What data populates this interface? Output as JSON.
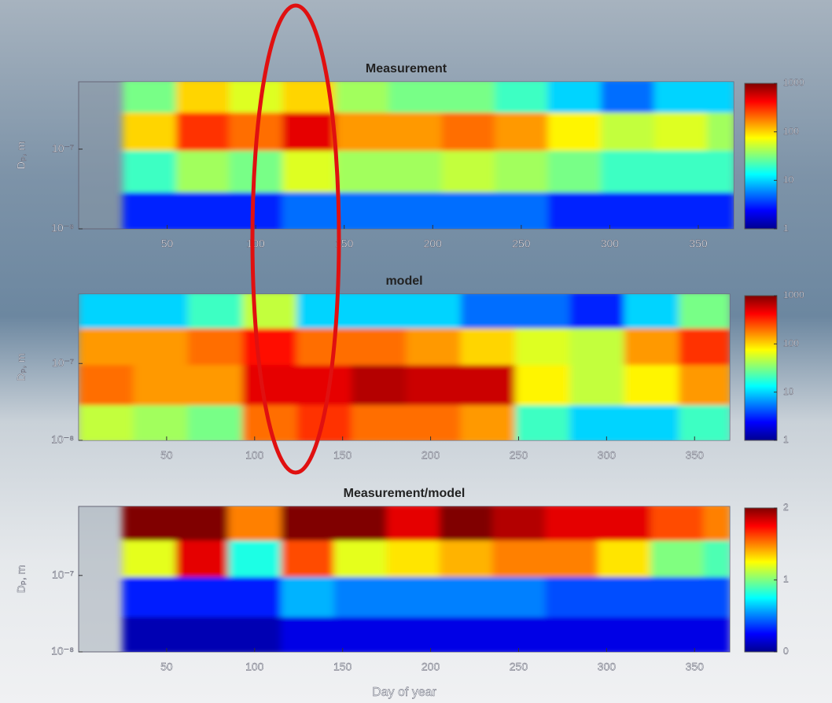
{
  "chart_data": [
    {
      "type": "heatmap",
      "title": "Measurement",
      "ylabel": "Dₚ, m",
      "x_edges": [
        25,
        55,
        85,
        115,
        145,
        175,
        205,
        235,
        265,
        295,
        325,
        355,
        370
      ],
      "y_edges": [
        1e-08,
        3e-08,
        1e-07,
        3e-07,
        7e-07
      ],
      "z": [
        [
          3,
          3,
          3,
          5,
          5,
          5,
          5,
          5,
          3,
          3,
          3,
          3
        ],
        [
          20,
          40,
          30,
          60,
          40,
          40,
          50,
          40,
          30,
          20,
          20,
          20
        ],
        [
          100,
          300,
          200,
          500,
          150,
          150,
          200,
          150,
          80,
          50,
          60,
          40
        ],
        [
          30,
          100,
          60,
          100,
          40,
          30,
          30,
          20,
          10,
          5,
          10,
          10
        ]
      ],
      "xlim": [
        0,
        370
      ],
      "xticks": [
        50,
        100,
        150,
        200,
        250,
        300,
        350
      ],
      "ylim": [
        1e-08,
        7e-07
      ],
      "log_y": true,
      "yticks": [
        {
          "value": 1e-08,
          "label": "10⁻⁸"
        },
        {
          "value": 1e-07,
          "label": "10⁻⁷"
        }
      ],
      "clim": [
        1,
        1000
      ],
      "log_c": true,
      "cticks": [
        1,
        10,
        100,
        1000
      ]
    },
    {
      "type": "heatmap",
      "title": "model",
      "ylabel": "Dₚ, m",
      "x_edges": [
        0,
        31,
        62,
        93,
        124,
        155,
        186,
        217,
        248,
        279,
        310,
        341,
        370
      ],
      "y_edges": [
        1e-08,
        3e-08,
        1e-07,
        3e-07,
        8e-07
      ],
      "z": [
        [
          50,
          40,
          30,
          200,
          300,
          200,
          200,
          150,
          20,
          10,
          10,
          20
        ],
        [
          200,
          150,
          150,
          500,
          500,
          700,
          600,
          600,
          80,
          50,
          80,
          150
        ],
        [
          150,
          150,
          200,
          400,
          200,
          200,
          150,
          100,
          60,
          50,
          150,
          300
        ],
        [
          10,
          10,
          20,
          50,
          10,
          10,
          10,
          5,
          5,
          3,
          10,
          30
        ]
      ],
      "xlim": [
        0,
        370
      ],
      "xticks": [
        50,
        100,
        150,
        200,
        250,
        300,
        350
      ],
      "ylim": [
        1e-08,
        8e-07
      ],
      "log_y": true,
      "yticks": [
        {
          "value": 1e-08,
          "label": "10⁻⁸"
        },
        {
          "value": 1e-07,
          "label": "10⁻⁷"
        }
      ],
      "clim": [
        1,
        1000
      ],
      "log_c": true,
      "cticks": [
        1,
        10,
        100,
        1000
      ]
    },
    {
      "type": "heatmap",
      "title": "Measurement/model",
      "ylabel": "Dₚ, m",
      "xlabel": "Day of year",
      "x_edges": [
        25,
        55,
        85,
        115,
        145,
        175,
        205,
        235,
        265,
        295,
        325,
        355,
        370
      ],
      "y_edges": [
        1e-08,
        3e-08,
        1e-07,
        3e-07,
        8e-07
      ],
      "z": [
        [
          0.1,
          0.1,
          0.1,
          0.2,
          0.2,
          0.2,
          0.2,
          0.2,
          0.2,
          0.2,
          0.2,
          0.2
        ],
        [
          0.3,
          0.3,
          0.3,
          0.6,
          0.5,
          0.5,
          0.5,
          0.5,
          0.4,
          0.4,
          0.4,
          0.4
        ],
        [
          1.2,
          1.8,
          0.8,
          1.6,
          1.2,
          1.3,
          1.4,
          1.5,
          1.5,
          1.3,
          1.0,
          0.9
        ],
        [
          2,
          2,
          1.5,
          2,
          2,
          1.8,
          2,
          1.9,
          1.8,
          1.8,
          1.6,
          1.5
        ]
      ],
      "xlim": [
        0,
        370
      ],
      "xticks": [
        50,
        100,
        150,
        200,
        250,
        300,
        350
      ],
      "ylim": [
        1e-08,
        8e-07
      ],
      "log_y": true,
      "yticks": [
        {
          "value": 1e-08,
          "label": "10⁻⁸"
        },
        {
          "value": 1e-07,
          "label": "10⁻⁷"
        }
      ],
      "clim": [
        0,
        2
      ],
      "log_c": false,
      "cticks": [
        0,
        1,
        2
      ]
    }
  ]
}
